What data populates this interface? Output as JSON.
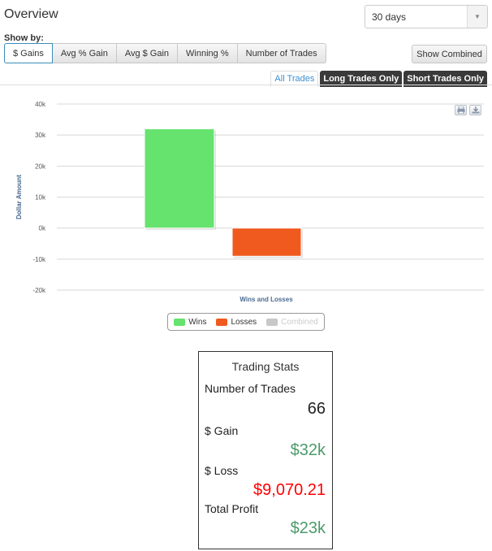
{
  "header": {
    "title": "Overview"
  },
  "range_select": {
    "value": "30 days",
    "arrow": "▼"
  },
  "show_by": {
    "label": "Show by:",
    "buttons": [
      "$ Gains",
      "Avg % Gain",
      "Avg $ Gain",
      "Winning %",
      "Number of Trades"
    ],
    "active": "$ Gains",
    "combined_label": "Show Combined"
  },
  "trade_tabs": [
    "All Trades",
    "Long Trades Only",
    "Short Trades Only"
  ],
  "chart_icons": {
    "print": "print-icon",
    "download": "download-icon"
  },
  "chart_data": {
    "type": "bar",
    "xlabel": "Wins and Losses",
    "ylabel": "Dollar Amount",
    "ylim": [
      -20000,
      40000
    ],
    "yticks": [
      40000,
      30000,
      20000,
      10000,
      0,
      -10000,
      -20000
    ],
    "ytick_labels": [
      "40k",
      "30k",
      "20k",
      "10k",
      "0k",
      "-10k",
      "-20k"
    ],
    "grid": true,
    "series": [
      {
        "name": "Wins",
        "color": "#66e36e",
        "value": 32000
      },
      {
        "name": "Losses",
        "color": "#f05a1e",
        "value": -9070.21
      },
      {
        "name": "Combined",
        "color": "#c8c8c8",
        "value": null,
        "hidden": true
      }
    ]
  },
  "stats": {
    "title": "Trading Stats",
    "number_of_trades_label": "Number of Trades",
    "number_of_trades": "66",
    "gain_label": "$ Gain",
    "gain": "$32k",
    "loss_label": "$ Loss",
    "loss": "$9,070.21",
    "total_profit_label": "Total Profit",
    "total_profit": "$23k"
  },
  "colors": {
    "positive": "#4a9a6a",
    "negative": "#ff0000",
    "accent": "#3a8fd1"
  }
}
